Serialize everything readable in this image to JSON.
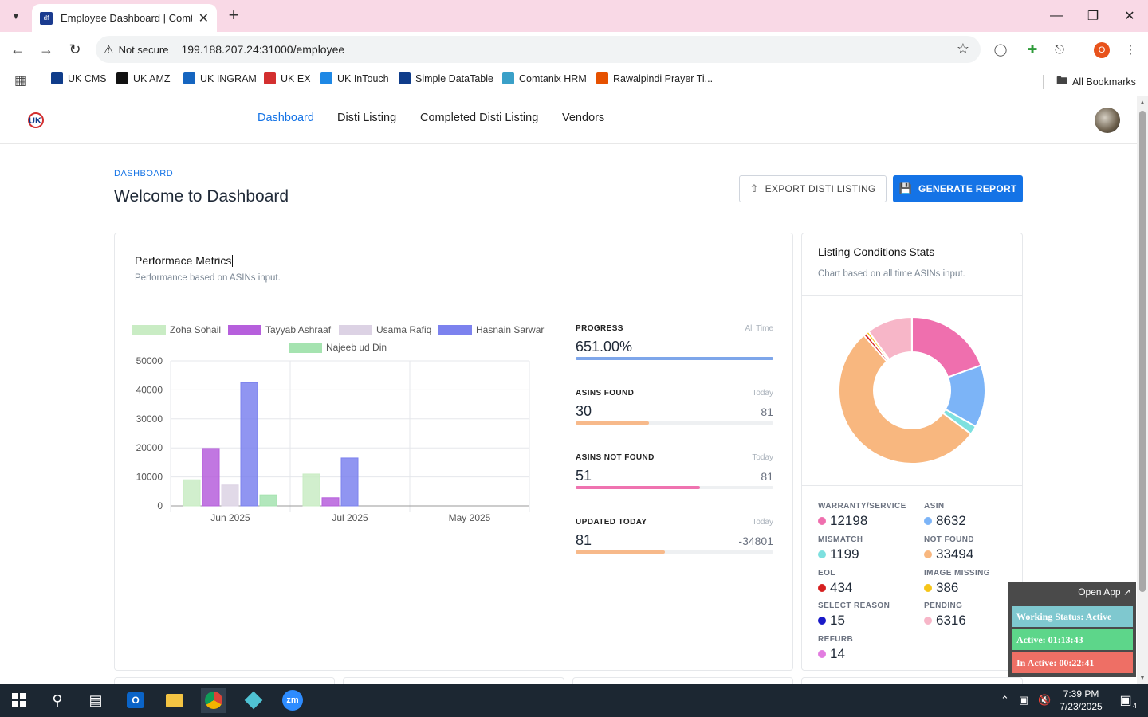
{
  "browser": {
    "tab_title": "Employee Dashboard | Comtanix",
    "url": "199.188.207.24:31000/employee",
    "security_label": "Not secure",
    "profile_initial": "O",
    "bookmarks": [
      {
        "label": "UK CMS",
        "color": "#0f3c8a"
      },
      {
        "label": "UK AMZ",
        "color": "#111111"
      },
      {
        "label": "UK INGRAM",
        "color": "#1565c0"
      },
      {
        "label": "UK EX",
        "color": "#d32f2f"
      },
      {
        "label": "UK InTouch",
        "color": "#1e88e5"
      },
      {
        "label": "Simple DataTable",
        "color": "#0f3c8a"
      },
      {
        "label": "Comtanix HRM",
        "color": "#3aa0c8"
      },
      {
        "label": "Rawalpindi Prayer Ti...",
        "color": "#e65100"
      }
    ],
    "all_bookmarks": "All Bookmarks"
  },
  "nav": {
    "links": [
      "Dashboard",
      "Disti Listing",
      "Completed Disti Listing",
      "Vendors"
    ]
  },
  "header": {
    "breadcrumb": "DASHBOARD",
    "title": "Welcome to Dashboard",
    "export_label": "EXPORT DISTI LISTING",
    "generate_label": "GENERATE REPORT"
  },
  "performance": {
    "title": "Performace Metrics",
    "subtitle": "Performance based on ASINs input.",
    "metrics": [
      {
        "label": "PROGRESS",
        "tag": "All Time",
        "value": "651.00%",
        "right": "",
        "fill": 1.0,
        "color": "#7ea6ea"
      },
      {
        "label": "ASINS FOUND",
        "tag": "Today",
        "value": "30",
        "right": "81",
        "fill": 0.37,
        "color": "#f7b98a"
      },
      {
        "label": "ASINS NOT FOUND",
        "tag": "Today",
        "value": "51",
        "right": "81",
        "fill": 0.63,
        "color": "#ef73b0"
      },
      {
        "label": "UPDATED TODAY",
        "tag": "Today",
        "value": "81",
        "right": "-34801",
        "fill": 0.45,
        "color": "#f7b98a"
      }
    ]
  },
  "chart_data": {
    "type": "bar",
    "categories": [
      "Jun 2025",
      "Jul 2025",
      "May 2025"
    ],
    "series": [
      {
        "name": "Zoha Sohail",
        "values": [
          9000,
          11000,
          0
        ],
        "color": "#c9ecc4"
      },
      {
        "name": "Tayyab Ashraaf",
        "values": [
          19800,
          2800,
          0
        ],
        "color": "#b65fdc"
      },
      {
        "name": "Usama Rafiq",
        "values": [
          7200,
          0,
          0
        ],
        "color": "#dcd2e4"
      },
      {
        "name": "Hasnain Sarwar",
        "values": [
          42500,
          16500,
          0
        ],
        "color": "#7c82ee"
      },
      {
        "name": "Najeeb ud Din",
        "values": [
          3800,
          0,
          0
        ],
        "color": "#a5e3b0"
      }
    ],
    "yticks": [
      0,
      10000,
      20000,
      30000,
      40000,
      50000
    ],
    "ylim": [
      0,
      50000
    ],
    "grid": true,
    "legend": "top"
  },
  "stats": {
    "title": "Listing Conditions Stats",
    "subtitle": "Chart based on all time ASINs input.",
    "items": [
      {
        "label": "WARRANTY/SERVICE",
        "value": "12198",
        "color": "#ef6fae"
      },
      {
        "label": "ASIN",
        "value": "8632",
        "color": "#7cb4f7"
      },
      {
        "label": "MISMATCH",
        "value": "1199",
        "color": "#7de0df"
      },
      {
        "label": "NOT FOUND",
        "value": "33494",
        "color": "#f8b77f"
      },
      {
        "label": "EOL",
        "value": "434",
        "color": "#d61f1f"
      },
      {
        "label": "IMAGE MISSING",
        "value": "386",
        "color": "#f6c518"
      },
      {
        "label": "SELECT REASON",
        "value": "15",
        "color": "#1a1ac8"
      },
      {
        "label": "PENDING",
        "value": "6316",
        "color": "#f7b6c8"
      },
      {
        "label": "REFURB",
        "value": "14",
        "color": "#e27ce0"
      }
    ]
  },
  "widget": {
    "open_app": "Open App ↗",
    "working_status": "Working Status: Active",
    "active": "Active: 01:13:43",
    "inactive": "In Active: 00:22:41"
  },
  "taskbar": {
    "time": "7:39 PM",
    "date": "7/23/2025",
    "notifications": "4"
  }
}
